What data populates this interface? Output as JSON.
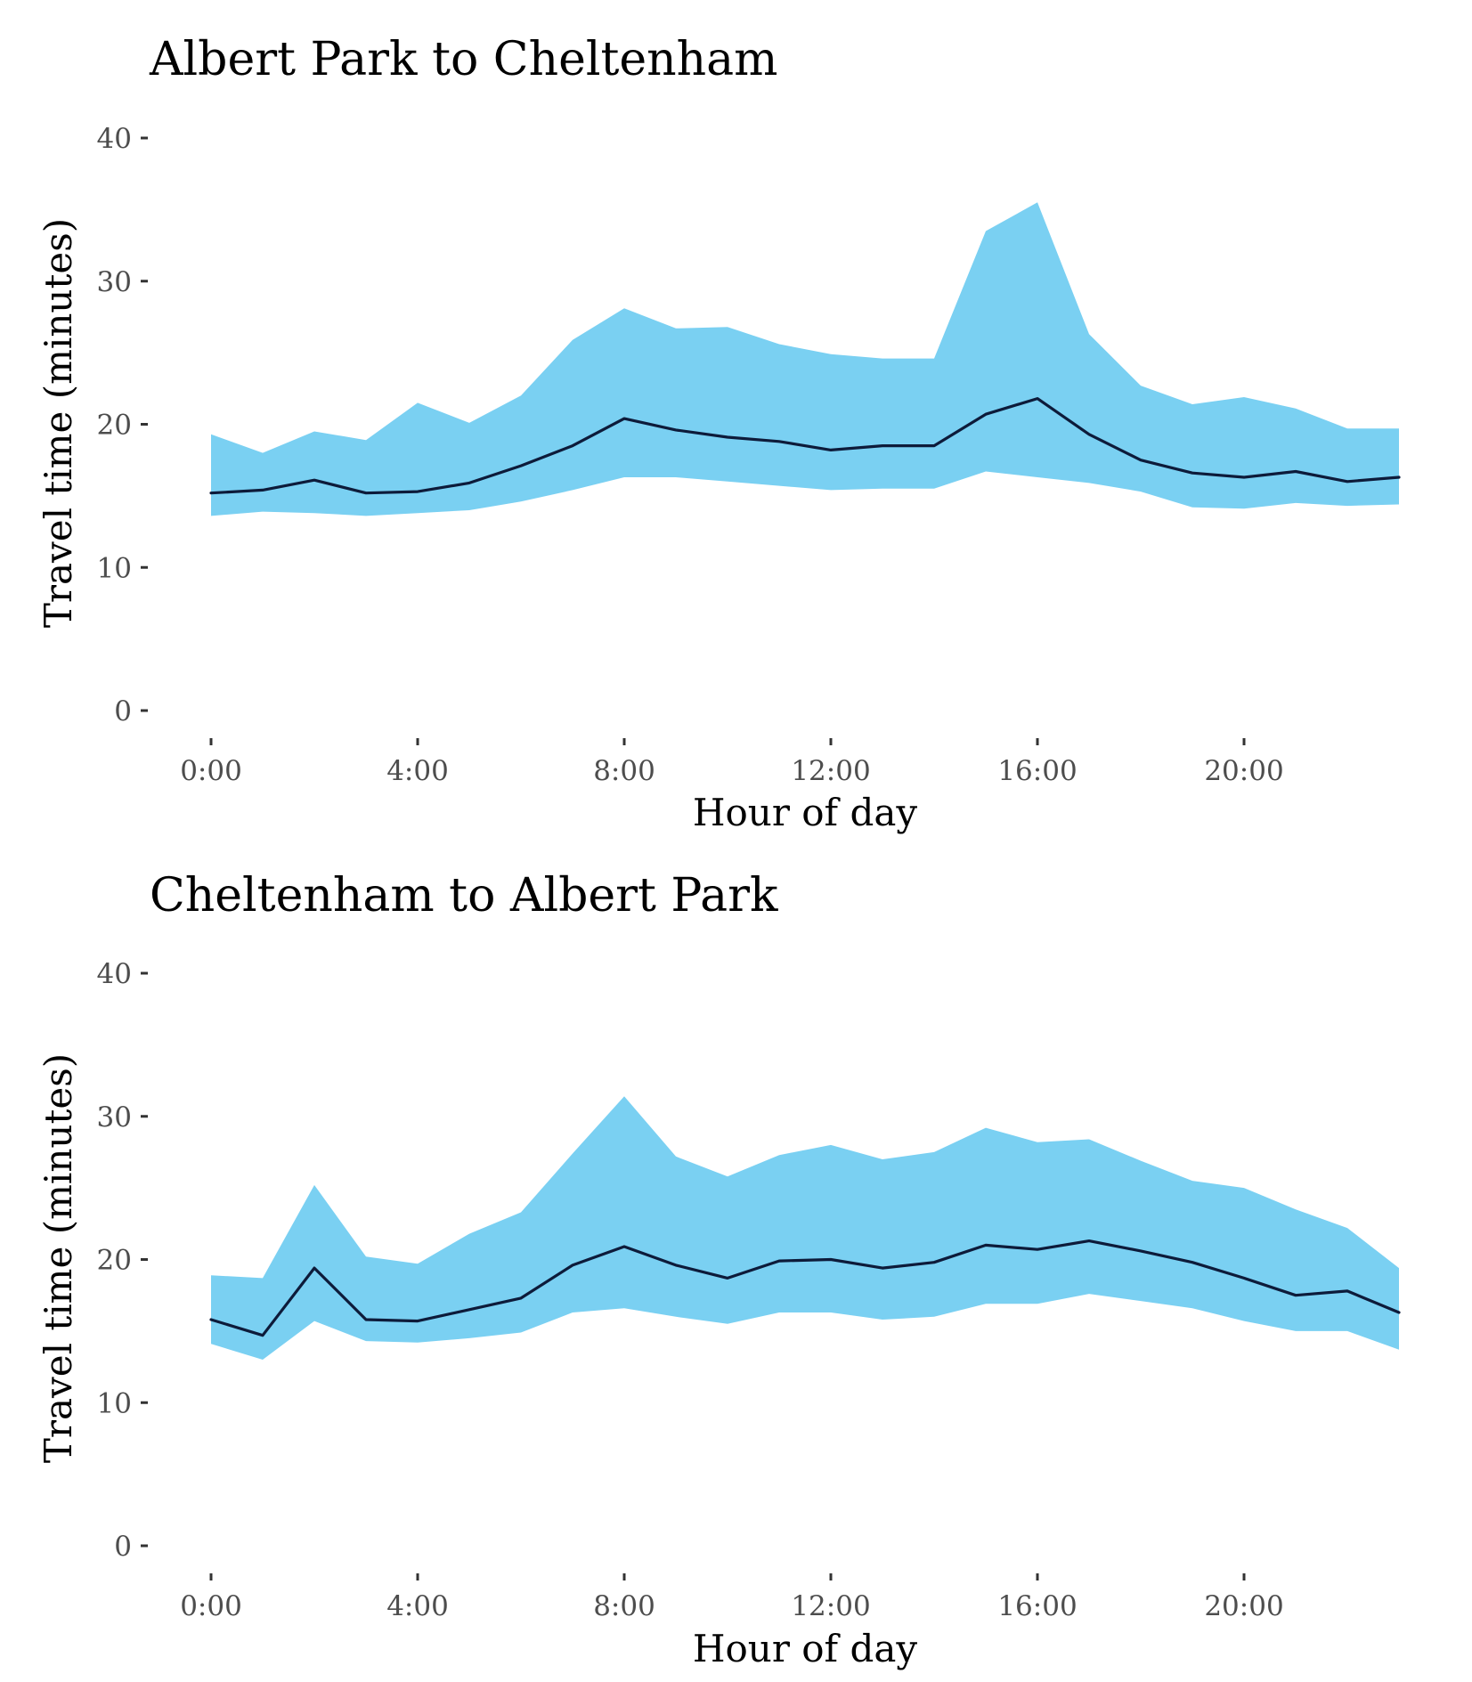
{
  "colors": {
    "ribbon": "#7ad0f2",
    "line": "#0d1b3a",
    "tick_text": "#4d4d4d",
    "tick_mark": "#333333",
    "title_text": "#000000"
  },
  "chart_data": [
    {
      "type": "area",
      "title": "Albert Park to Cheltenham",
      "xlabel": "Hour of day",
      "ylabel": "Travel time (minutes)",
      "ylim": [
        0,
        40
      ],
      "xlim": [
        0,
        23
      ],
      "grid": false,
      "x_ticks": [
        0,
        4,
        8,
        12,
        16,
        20
      ],
      "x_tick_labels": [
        "0:00",
        "4:00",
        "8:00",
        "12:00",
        "16:00",
        "20:00"
      ],
      "y_ticks": [
        0,
        10,
        20,
        30,
        40
      ],
      "y_tick_labels": [
        "0",
        "10",
        "20",
        "30",
        "40"
      ],
      "x": [
        0,
        1,
        2,
        3,
        4,
        5,
        6,
        7,
        8,
        9,
        10,
        11,
        12,
        13,
        14,
        15,
        16,
        17,
        18,
        19,
        20,
        21,
        22,
        23
      ],
      "series": [
        {
          "role": "range_band",
          "upper": [
            19.3,
            18.0,
            19.5,
            18.9,
            21.5,
            20.1,
            22.0,
            25.9,
            28.1,
            26.7,
            26.8,
            25.6,
            24.9,
            24.6,
            24.6,
            33.5,
            35.5,
            26.3,
            22.7,
            21.4,
            21.9,
            21.1,
            19.7,
            19.7
          ],
          "lower": [
            13.6,
            13.9,
            13.8,
            13.6,
            13.8,
            14.0,
            14.6,
            15.4,
            16.3,
            16.3,
            16.0,
            15.7,
            15.4,
            15.5,
            15.5,
            16.7,
            16.3,
            15.9,
            15.3,
            14.2,
            14.1,
            14.5,
            14.3,
            14.4
          ]
        },
        {
          "role": "median_line",
          "values": [
            15.2,
            15.4,
            16.1,
            15.2,
            15.3,
            15.9,
            17.1,
            18.5,
            20.4,
            19.6,
            19.1,
            18.8,
            18.2,
            18.5,
            18.5,
            20.7,
            21.8,
            19.3,
            17.5,
            16.6,
            16.3,
            16.7,
            16.0,
            16.3
          ]
        }
      ]
    },
    {
      "type": "area",
      "title": "Cheltenham to Albert Park",
      "xlabel": "Hour of day",
      "ylabel": "Travel time (minutes)",
      "ylim": [
        0,
        40
      ],
      "xlim": [
        0,
        23
      ],
      "grid": false,
      "x_ticks": [
        0,
        4,
        8,
        12,
        16,
        20
      ],
      "x_tick_labels": [
        "0:00",
        "4:00",
        "8:00",
        "12:00",
        "16:00",
        "20:00"
      ],
      "y_ticks": [
        0,
        10,
        20,
        30,
        40
      ],
      "y_tick_labels": [
        "0",
        "10",
        "20",
        "30",
        "40"
      ],
      "x": [
        0,
        1,
        2,
        3,
        4,
        5,
        6,
        7,
        8,
        9,
        10,
        11,
        12,
        13,
        14,
        15,
        16,
        17,
        18,
        19,
        20,
        21,
        22,
        23
      ],
      "series": [
        {
          "role": "range_band",
          "upper": [
            18.9,
            18.7,
            25.2,
            20.2,
            19.7,
            21.8,
            23.3,
            27.4,
            31.4,
            27.2,
            25.8,
            27.3,
            28.0,
            27.0,
            27.5,
            29.2,
            28.2,
            28.4,
            26.9,
            25.5,
            25.0,
            23.5,
            22.2,
            19.4
          ],
          "lower": [
            14.1,
            13.0,
            15.7,
            14.3,
            14.2,
            14.5,
            14.9,
            16.3,
            16.6,
            16.0,
            15.5,
            16.3,
            16.3,
            15.8,
            16.0,
            16.9,
            16.9,
            17.6,
            17.1,
            16.6,
            15.7,
            15.0,
            15.0,
            13.7
          ]
        },
        {
          "role": "median_line",
          "values": [
            15.8,
            14.7,
            19.4,
            15.8,
            15.7,
            16.5,
            17.3,
            19.6,
            20.9,
            19.6,
            18.7,
            19.9,
            20.0,
            19.4,
            19.8,
            21.0,
            20.7,
            21.3,
            20.6,
            19.8,
            18.7,
            17.5,
            17.8,
            16.3
          ]
        }
      ]
    }
  ]
}
